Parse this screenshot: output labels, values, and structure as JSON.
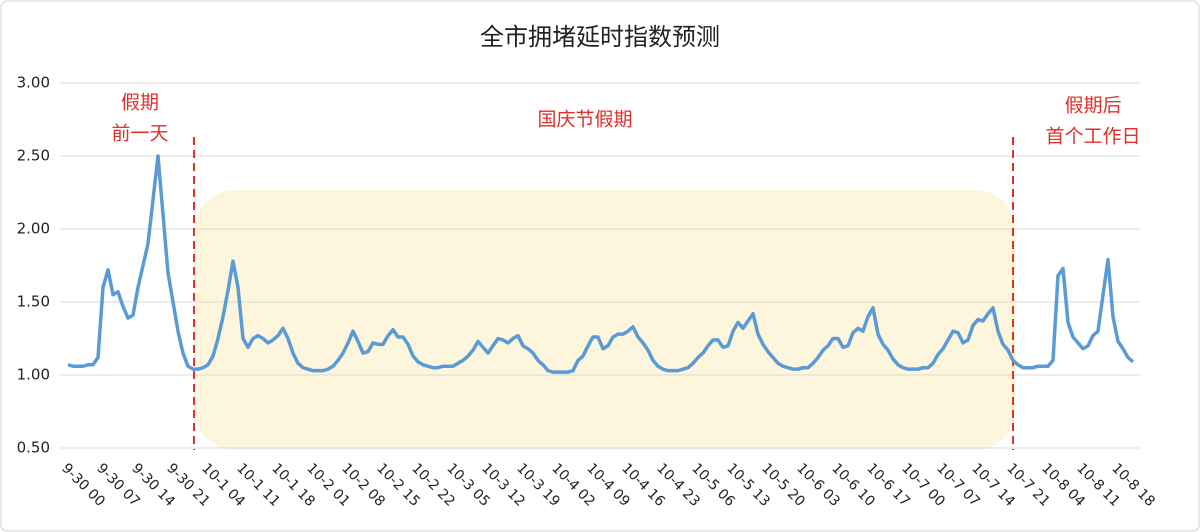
{
  "chart_data": {
    "type": "line",
    "title": "全市拥堵延时指数预测",
    "categories": [
      "9-30 00",
      null,
      null,
      null,
      null,
      null,
      null,
      "9-30 07",
      null,
      null,
      null,
      null,
      null,
      null,
      "9-30 14",
      null,
      null,
      null,
      null,
      null,
      null,
      "9-30 21",
      null,
      null,
      null,
      null,
      null,
      null,
      "10-1 04",
      null,
      null,
      null,
      null,
      null,
      null,
      "10-1 11",
      null,
      null,
      null,
      null,
      null,
      null,
      "10-1 18",
      null,
      null,
      null,
      null,
      null,
      null,
      "10-2 01",
      null,
      null,
      null,
      null,
      null,
      null,
      "10-2 08",
      null,
      null,
      null,
      null,
      null,
      null,
      "10-2 15",
      null,
      null,
      null,
      null,
      null,
      null,
      "10-2 22",
      null,
      null,
      null,
      null,
      null,
      null,
      "10-3 05",
      null,
      null,
      null,
      null,
      null,
      null,
      "10-3 12",
      null,
      null,
      null,
      null,
      null,
      null,
      "10-3 19",
      null,
      null,
      null,
      null,
      null,
      null,
      "10-4 02",
      null,
      null,
      null,
      null,
      null,
      null,
      "10-4 09",
      null,
      null,
      null,
      null,
      null,
      null,
      "10-4 16",
      null,
      null,
      null,
      null,
      null,
      null,
      "10-4 23",
      null,
      null,
      null,
      null,
      null,
      null,
      "10-5 06",
      null,
      null,
      null,
      null,
      null,
      null,
      "10-5 13",
      null,
      null,
      null,
      null,
      null,
      null,
      "10-5 20",
      null,
      null,
      null,
      null,
      null,
      null,
      "10-6 03",
      null,
      null,
      null,
      null,
      null,
      null,
      "10-6 10",
      null,
      null,
      null,
      null,
      null,
      null,
      "10-6 17",
      null,
      null,
      null,
      null,
      null,
      null,
      "10-7 00",
      null,
      null,
      null,
      null,
      null,
      null,
      "10-7 07",
      null,
      null,
      null,
      null,
      null,
      null,
      "10-7 14",
      null,
      null,
      null,
      null,
      null,
      null,
      "10-7 21",
      null,
      null,
      null,
      null,
      null,
      null,
      "10-8 04",
      null,
      null,
      null,
      null,
      null,
      null,
      "10-8 11",
      null,
      null,
      null,
      null,
      null,
      null,
      "10-8 18",
      null,
      null,
      null
    ],
    "values": [
      1.07,
      1.06,
      1.06,
      1.06,
      1.07,
      1.07,
      1.12,
      1.6,
      1.72,
      1.55,
      1.57,
      1.47,
      1.39,
      1.41,
      1.6,
      1.75,
      1.9,
      2.2,
      2.5,
      2.1,
      1.7,
      1.5,
      1.3,
      1.15,
      1.06,
      1.04,
      1.04,
      1.05,
      1.07,
      1.13,
      1.25,
      1.4,
      1.58,
      1.78,
      1.6,
      1.25,
      1.19,
      1.25,
      1.27,
      1.25,
      1.22,
      1.24,
      1.27,
      1.32,
      1.25,
      1.15,
      1.08,
      1.05,
      1.04,
      1.03,
      1.03,
      1.03,
      1.04,
      1.06,
      1.1,
      1.15,
      1.22,
      1.3,
      1.23,
      1.15,
      1.16,
      1.22,
      1.21,
      1.21,
      1.27,
      1.31,
      1.26,
      1.26,
      1.21,
      1.13,
      1.09,
      1.07,
      1.06,
      1.05,
      1.05,
      1.06,
      1.06,
      1.06,
      1.08,
      1.1,
      1.13,
      1.17,
      1.23,
      1.19,
      1.15,
      1.2,
      1.25,
      1.24,
      1.22,
      1.25,
      1.27,
      1.2,
      1.18,
      1.15,
      1.1,
      1.07,
      1.03,
      1.02,
      1.02,
      1.02,
      1.02,
      1.03,
      1.1,
      1.13,
      1.2,
      1.26,
      1.26,
      1.18,
      1.2,
      1.26,
      1.28,
      1.28,
      1.3,
      1.33,
      1.26,
      1.22,
      1.17,
      1.1,
      1.06,
      1.04,
      1.03,
      1.03,
      1.03,
      1.04,
      1.05,
      1.08,
      1.12,
      1.15,
      1.2,
      1.24,
      1.24,
      1.19,
      1.2,
      1.3,
      1.36,
      1.32,
      1.37,
      1.42,
      1.28,
      1.21,
      1.16,
      1.12,
      1.08,
      1.06,
      1.05,
      1.04,
      1.04,
      1.05,
      1.05,
      1.08,
      1.12,
      1.17,
      1.2,
      1.25,
      1.25,
      1.19,
      1.2,
      1.29,
      1.32,
      1.3,
      1.4,
      1.46,
      1.28,
      1.21,
      1.17,
      1.11,
      1.07,
      1.05,
      1.04,
      1.04,
      1.04,
      1.05,
      1.05,
      1.08,
      1.14,
      1.18,
      1.24,
      1.3,
      1.29,
      1.22,
      1.24,
      1.34,
      1.38,
      1.37,
      1.42,
      1.46,
      1.3,
      1.21,
      1.17,
      1.1,
      1.07,
      1.05,
      1.05,
      1.05,
      1.06,
      1.06,
      1.06,
      1.1,
      1.68,
      1.73,
      1.36,
      1.26,
      1.22,
      1.18,
      1.2,
      1.27,
      1.3,
      1.55,
      1.79,
      1.4,
      1.23,
      1.18,
      1.12,
      1.09
    ],
    "color": "#5b9bd5",
    "ylim": [
      0.5,
      3.0
    ],
    "yticks": [
      {
        "value": 0.5,
        "label": "0.50"
      },
      {
        "value": 1.0,
        "label": "1.00"
      },
      {
        "value": 1.5,
        "label": "1.50"
      },
      {
        "value": 2.0,
        "label": "2.00"
      },
      {
        "value": 2.5,
        "label": "2.50"
      },
      {
        "value": 3.0,
        "label": "3.00"
      }
    ],
    "grid": true,
    "annotations": [
      {
        "lines": [
          "假期",
          "前一天"
        ]
      },
      {
        "lines": [
          "国庆节假期"
        ]
      },
      {
        "lines": [
          "假期后",
          "首个工作日"
        ]
      }
    ]
  }
}
